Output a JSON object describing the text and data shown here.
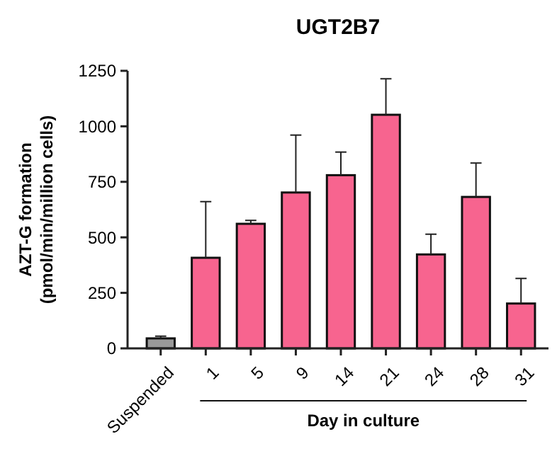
{
  "chart_data": {
    "type": "bar",
    "title": "UGT2B7",
    "xlabel": "Day in culture",
    "ylabel": "AZT-G formation\n(pmol/min/million cells)",
    "categories": [
      "Suspended",
      "1",
      "5",
      "9",
      "14",
      "21",
      "24",
      "28",
      "31"
    ],
    "values": [
      45,
      408,
      561,
      702,
      780,
      1052,
      423,
      682,
      202
    ],
    "errors": [
      [
        45,
        55
      ],
      [
        408,
        661
      ],
      [
        561,
        576
      ],
      [
        702,
        961
      ],
      [
        780,
        884
      ],
      [
        1052,
        1214
      ],
      [
        423,
        514
      ],
      [
        682,
        835
      ],
      [
        202,
        315
      ]
    ],
    "colors": [
      "#999999",
      "#f7648f",
      "#f7648f",
      "#f7648f",
      "#f7648f",
      "#f7648f",
      "#f7648f",
      "#f7648f",
      "#f7648f"
    ],
    "ylim": [
      0,
      1250
    ],
    "yticks": [
      0,
      250,
      500,
      750,
      1000,
      1250
    ],
    "grid": false
  }
}
